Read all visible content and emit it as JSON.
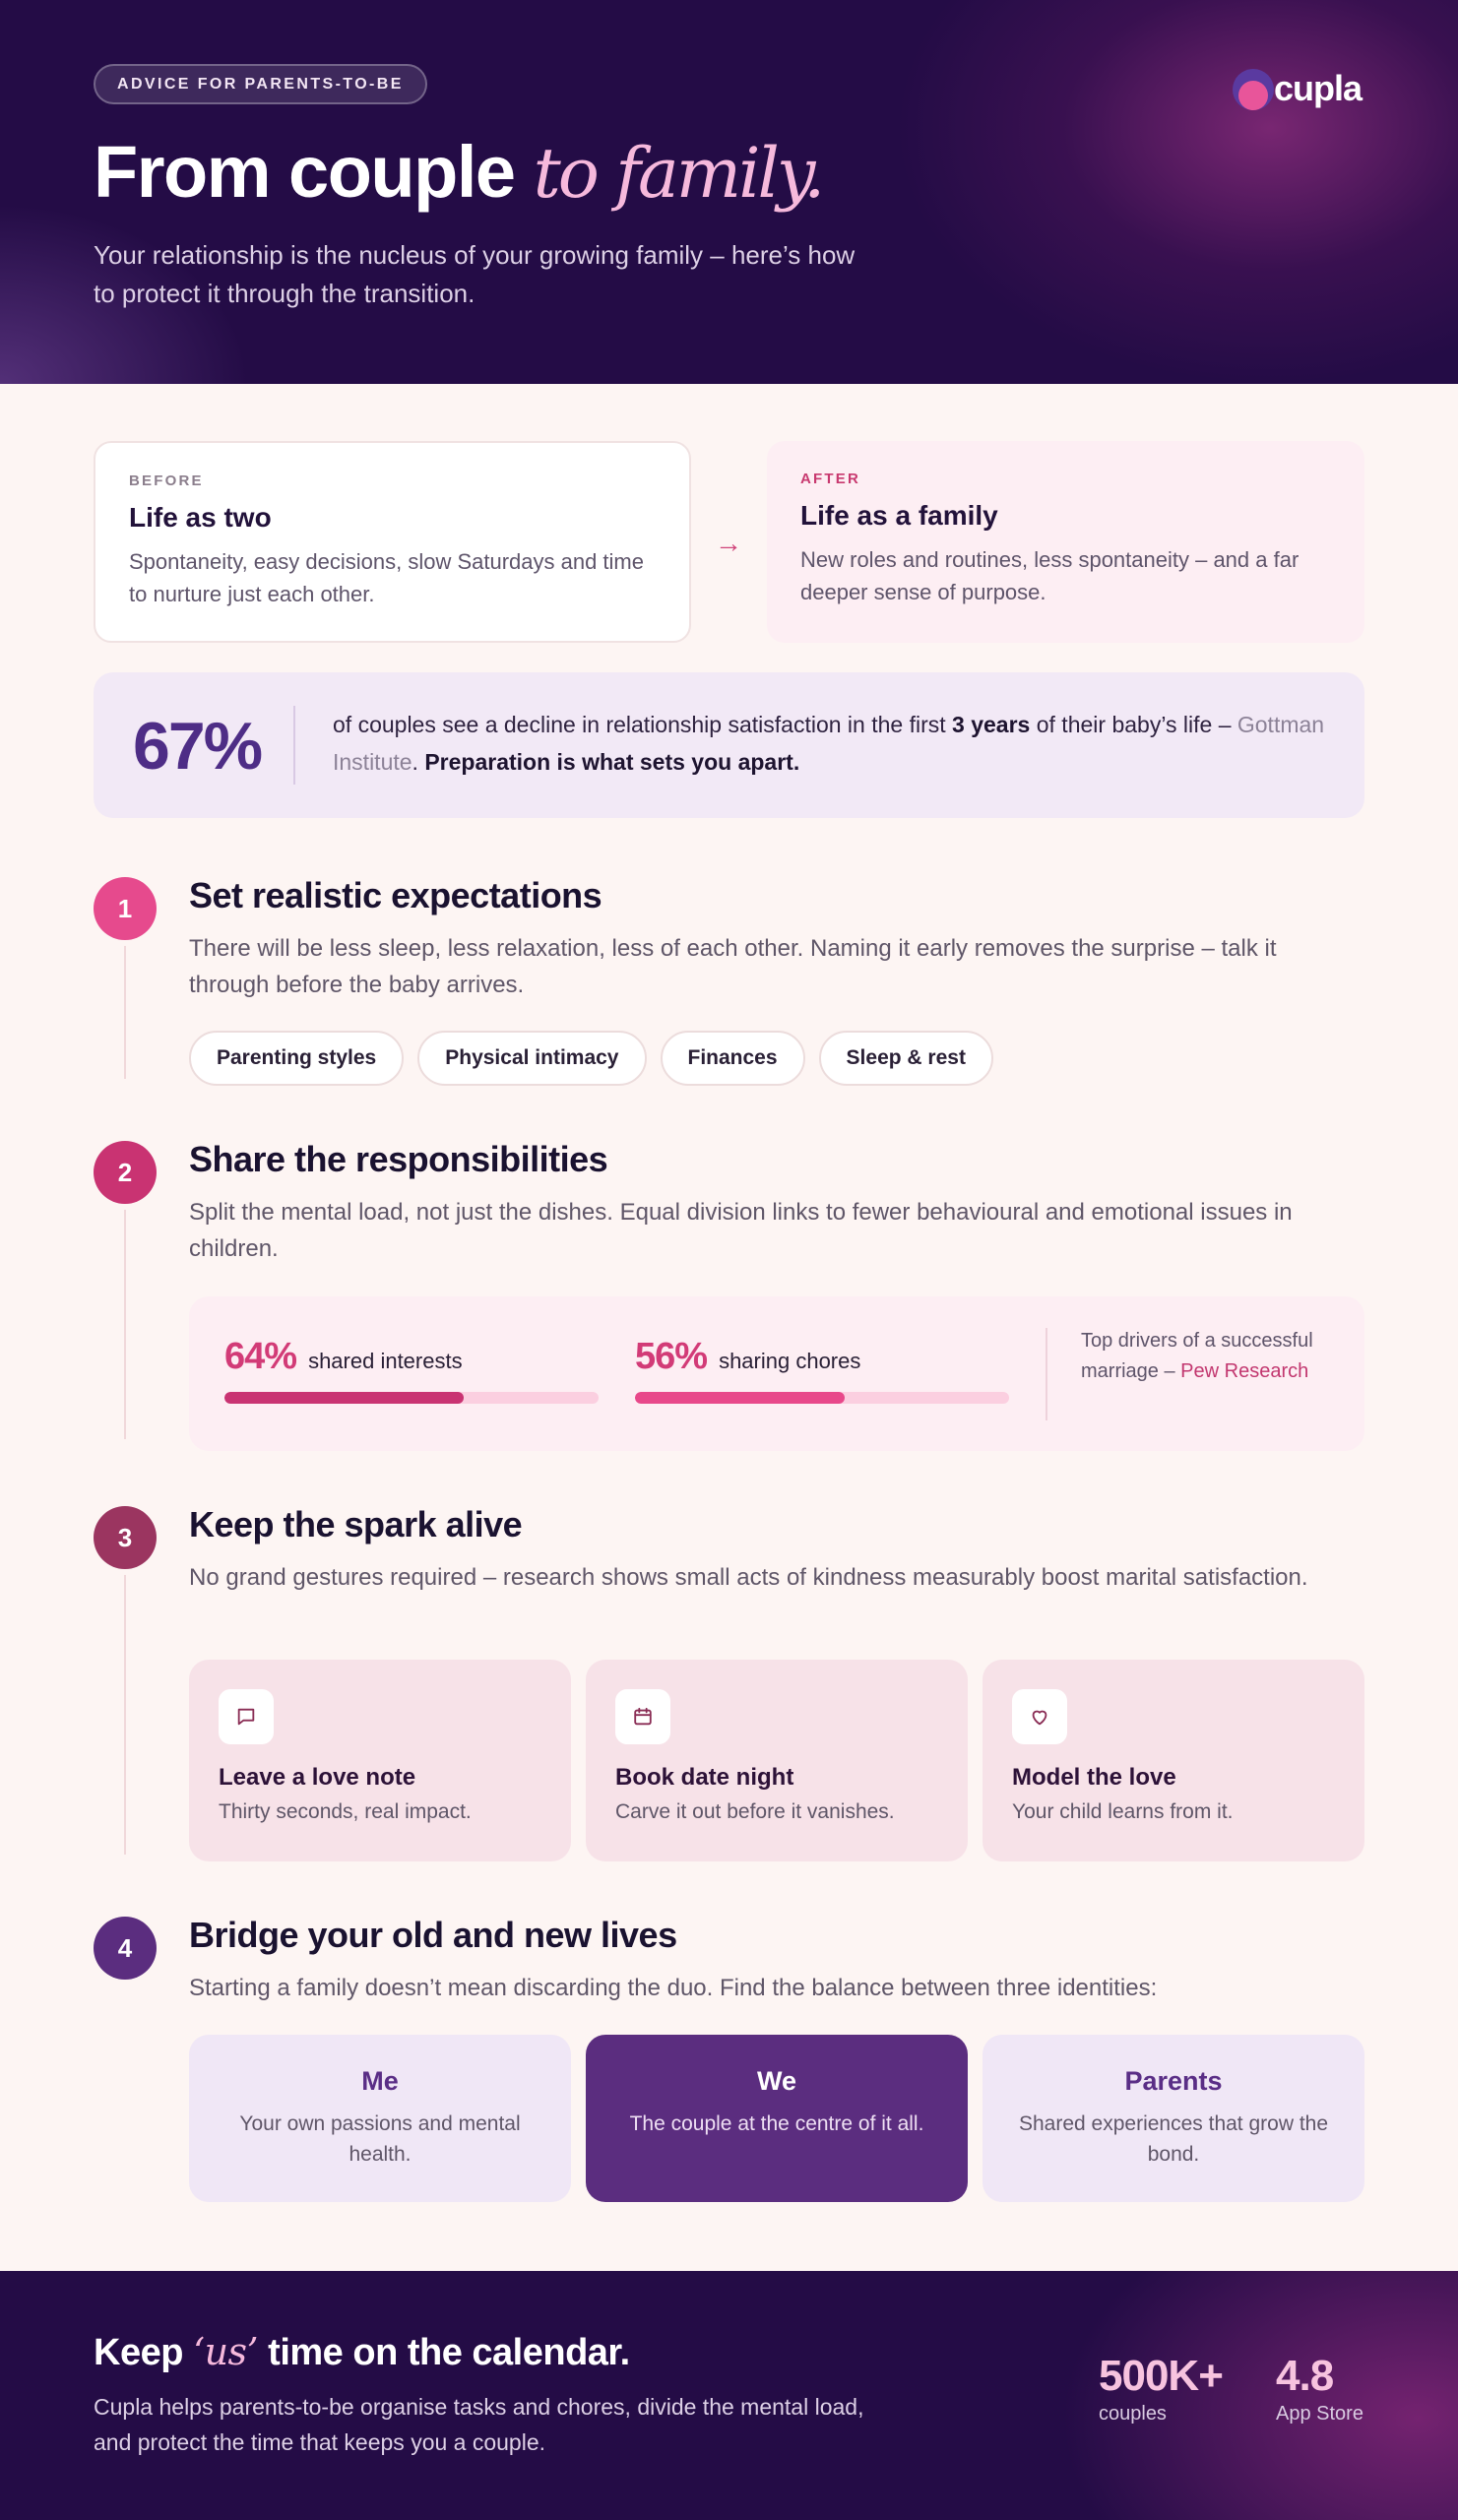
{
  "hero": {
    "badge": "ADVICE FOR PARENTS-TO-BE",
    "brand": "cupla",
    "title_main": "From couple",
    "title_accent": "to family.",
    "subtitle": "Your relationship is the nucleus of your growing family – here’s how to protect it through the transition."
  },
  "before": {
    "eyebrow": "BEFORE",
    "title": "Life as two",
    "text": "Spontaneity, easy decisions, slow Saturdays and time to nurture just each other."
  },
  "after": {
    "eyebrow": "AFTER",
    "title": "Life as a family",
    "text": "New roles and routines, less spontaneity – and a far deeper sense of purpose."
  },
  "arrow_glyph": "→",
  "stat": {
    "value": "67%",
    "text_a": "of couples see a decline in relationship satisfaction in the first ",
    "text_bold": "3 years",
    "text_b": " of their baby’s life – ",
    "source": "Gottman Institute",
    "text_c": ". ",
    "closing": "Preparation is what sets you apart."
  },
  "steps": [
    {
      "number": "1",
      "color": "#e64a8d",
      "title": "Set realistic expectations",
      "description": "There will be less sleep, less relaxation, less of each other. Naming it early removes the surprise – talk it through before the baby arrives.",
      "chips": [
        "Parenting styles",
        "Physical intimacy",
        "Finances",
        "Sleep & rest"
      ]
    },
    {
      "number": "2",
      "color": "#c93372",
      "title": "Share the responsibilities",
      "description": "Split the mental load, not just the dishes. Equal division links to fewer behavioural and emotional issues in children.",
      "metrics": [
        {
          "pct": "64%",
          "label": "shared interests",
          "value": 64,
          "color": "#c93372"
        },
        {
          "pct": "56%",
          "label": "sharing chores",
          "value": 56,
          "color": "#e8488a"
        }
      ],
      "note": "Top drivers of a successful marriage –",
      "note_source": "Pew Research"
    },
    {
      "number": "3",
      "color": "#9b3560",
      "title": "Keep the spark alive",
      "description": "No grand gestures required – research shows small acts of kindness measurably boost marital satisfaction.",
      "cards": [
        {
          "icon": "chat-bubble-icon",
          "title": "Leave a love note",
          "text": "Thirty seconds, real impact."
        },
        {
          "icon": "calendar-icon",
          "title": "Book date night",
          "text": "Carve it out before it vanishes."
        },
        {
          "icon": "heart-icon",
          "title": "Model the love",
          "text": "Your child learns from it."
        }
      ]
    },
    {
      "number": "4",
      "color": "#5b2d7f",
      "title": "Bridge your old and new lives",
      "description": "Starting a family doesn’t mean discarding the duo. Find the balance between three identities:",
      "identities": [
        {
          "title": "Me",
          "text": "Your own passions and mental health."
        },
        {
          "title": "We",
          "text": "The couple at the centre of it all."
        },
        {
          "title": "Parents",
          "text": "Shared experiences that grow the bond."
        }
      ]
    }
  ],
  "footer": {
    "title_a": "Keep ",
    "title_accent": "‘us’",
    "title_b": " time on the calendar.",
    "text": "Cupla helps parents-to-be organise tasks and chores, divide the mental load, and protect the time that keeps you a couple.",
    "stats": [
      {
        "value": "500K+",
        "label": "couples"
      },
      {
        "value": "4.8",
        "label": "App Store"
      }
    ]
  }
}
